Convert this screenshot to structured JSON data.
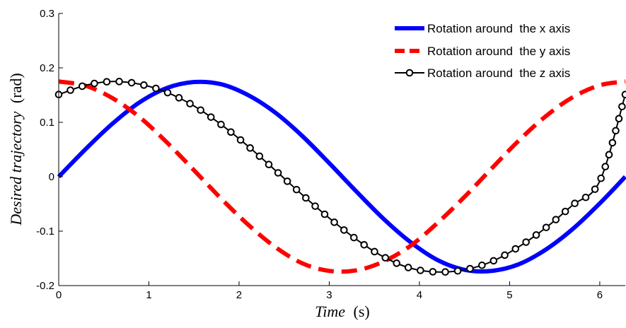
{
  "chart_data": {
    "type": "line",
    "xlabel": {
      "main": "Time",
      "unit": "(s)"
    },
    "ylabel": {
      "main": "Desired trajectory",
      "unit": "(rad)"
    },
    "xlim": [
      0,
      6.283
    ],
    "ylim": [
      -0.2,
      0.3
    ],
    "x_ticks": [
      {
        "value": 0,
        "label": "0"
      },
      {
        "value": 1,
        "label": "1"
      },
      {
        "value": 2,
        "label": "2"
      },
      {
        "value": 3,
        "label": "3"
      },
      {
        "value": 4,
        "label": "4"
      },
      {
        "value": 5,
        "label": "5"
      },
      {
        "value": 6,
        "label": "6"
      }
    ],
    "y_ticks": [
      {
        "value": -0.2,
        "label": "-0.2"
      },
      {
        "value": -0.1,
        "label": "-0.1"
      },
      {
        "value": 0,
        "label": "0"
      },
      {
        "value": 0.1,
        "label": "0.1"
      },
      {
        "value": 0.2,
        "label": "0.2"
      },
      {
        "value": 0.3,
        "label": "0.3"
      }
    ],
    "grid": false,
    "legend_position": "top-right",
    "series": [
      {
        "name": "Rotation around  the x axis",
        "color": "#0000ff",
        "style": "solid",
        "x": [
          0,
          0.3,
          0.6,
          0.9,
          1.2,
          1.5,
          1.8,
          2.1,
          2.4,
          2.7,
          3.0,
          3.3,
          3.6,
          3.9,
          4.2,
          4.5,
          4.8,
          5.1,
          5.4,
          5.7,
          6.0,
          6.283
        ],
        "y": [
          0.0,
          0.051,
          0.098,
          0.137,
          0.163,
          0.174,
          0.17,
          0.15,
          0.118,
          0.075,
          0.025,
          -0.027,
          -0.077,
          -0.12,
          -0.153,
          -0.171,
          -0.173,
          -0.161,
          -0.134,
          -0.096,
          -0.049,
          0.0
        ]
      },
      {
        "name": "Rotation around  the y axis",
        "color": "#ff0000",
        "style": "dashed",
        "x": [
          0,
          0.3,
          0.6,
          0.9,
          1.2,
          1.5,
          1.8,
          2.1,
          2.4,
          2.7,
          3.0,
          3.3,
          3.6,
          3.9,
          4.2,
          4.5,
          4.8,
          5.1,
          5.4,
          5.7,
          6.0,
          6.283
        ],
        "y": [
          0.175,
          0.167,
          0.144,
          0.109,
          0.063,
          0.012,
          -0.04,
          -0.088,
          -0.129,
          -0.159,
          -0.173,
          -0.172,
          -0.156,
          -0.127,
          -0.085,
          -0.037,
          0.015,
          0.066,
          0.111,
          0.146,
          0.168,
          0.175
        ]
      },
      {
        "name": "Rotation around  the z axis",
        "color": "#000000",
        "style": "solid-circle-markers",
        "x": [
          0,
          0.3,
          0.6,
          0.9,
          1.2,
          1.5,
          1.8,
          2.1,
          2.4,
          2.7,
          3.0,
          3.3,
          3.6,
          3.9,
          4.2,
          4.5,
          4.8,
          5.1,
          5.4,
          5.7,
          6.0,
          6.283
        ],
        "y": [
          0.151,
          0.168,
          0.175,
          0.17,
          0.155,
          0.13,
          0.096,
          0.056,
          0.012,
          -0.033,
          -0.076,
          -0.115,
          -0.147,
          -0.168,
          -0.175,
          -0.171,
          -0.156,
          -0.129,
          -0.094,
          -0.052,
          -0.008,
          0.151
        ]
      }
    ]
  }
}
